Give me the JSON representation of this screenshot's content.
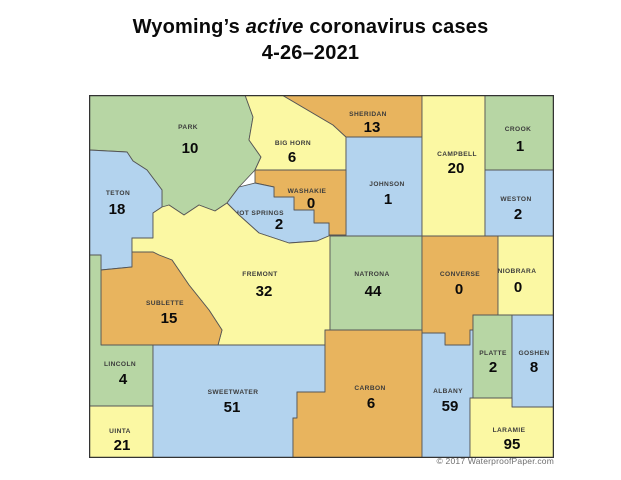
{
  "title": {
    "prefix": "Wyoming’s ",
    "emphasis": "active",
    "suffix": " coronavirus cases",
    "date": "4-26–2021"
  },
  "map": {
    "palette": {
      "green": "#b7d6a4",
      "blue": "#b3d3ee",
      "yellow": "#fbf8a3",
      "orange": "#e8b45e",
      "border": "#565656",
      "outer_border": "#333333",
      "label_color": "#3c3c3c",
      "number_color": "#0a0a0a"
    },
    "counties": [
      {
        "id": "park",
        "name": "PARK",
        "cases": "10",
        "color": "green"
      },
      {
        "id": "bighorn",
        "name": "BIG HORN",
        "cases": "6",
        "color": "yellow"
      },
      {
        "id": "sheridan",
        "name": "SHERIDAN",
        "cases": "13",
        "color": "orange"
      },
      {
        "id": "johnson",
        "name": "JOHNSON",
        "cases": "1",
        "color": "blue"
      },
      {
        "id": "campbell",
        "name": "CAMPBELL",
        "cases": "20",
        "color": "yellow"
      },
      {
        "id": "crook",
        "name": "CROOK",
        "cases": "1",
        "color": "green"
      },
      {
        "id": "weston",
        "name": "WESTON",
        "cases": "2",
        "color": "blue"
      },
      {
        "id": "teton",
        "name": "TETON",
        "cases": "18",
        "color": "blue"
      },
      {
        "id": "washakie",
        "name": "WASHAKIE",
        "cases": "0",
        "color": "orange"
      },
      {
        "id": "hotsprings",
        "name": "HOT SPRINGS",
        "cases": "2",
        "color": "blue"
      },
      {
        "id": "fremont",
        "name": "FREMONT",
        "cases": "32",
        "color": "yellow"
      },
      {
        "id": "natrona",
        "name": "NATRONA",
        "cases": "44",
        "color": "green"
      },
      {
        "id": "converse",
        "name": "CONVERSE",
        "cases": "0",
        "color": "orange"
      },
      {
        "id": "niobrara",
        "name": "NIOBRARA",
        "cases": "0",
        "color": "yellow"
      },
      {
        "id": "sublette",
        "name": "SUBLETTE",
        "cases": "15",
        "color": "orange"
      },
      {
        "id": "lincoln",
        "name": "LINCOLN",
        "cases": "4",
        "color": "green"
      },
      {
        "id": "uinta",
        "name": "UINTA",
        "cases": "21",
        "color": "yellow"
      },
      {
        "id": "sweetwater",
        "name": "SWEETWATER",
        "cases": "51",
        "color": "blue"
      },
      {
        "id": "carbon",
        "name": "CARBON",
        "cases": "6",
        "color": "orange"
      },
      {
        "id": "albany",
        "name": "ALBANY",
        "cases": "59",
        "color": "blue"
      },
      {
        "id": "platte",
        "name": "PLATTE",
        "cases": "2",
        "color": "green"
      },
      {
        "id": "goshen",
        "name": "GOSHEN",
        "cases": "8",
        "color": "blue"
      },
      {
        "id": "laramie",
        "name": "LARAMIE",
        "cases": "95",
        "color": "yellow"
      }
    ]
  },
  "footer": {
    "copyright": "© 2017 WaterproofPaper.com"
  }
}
